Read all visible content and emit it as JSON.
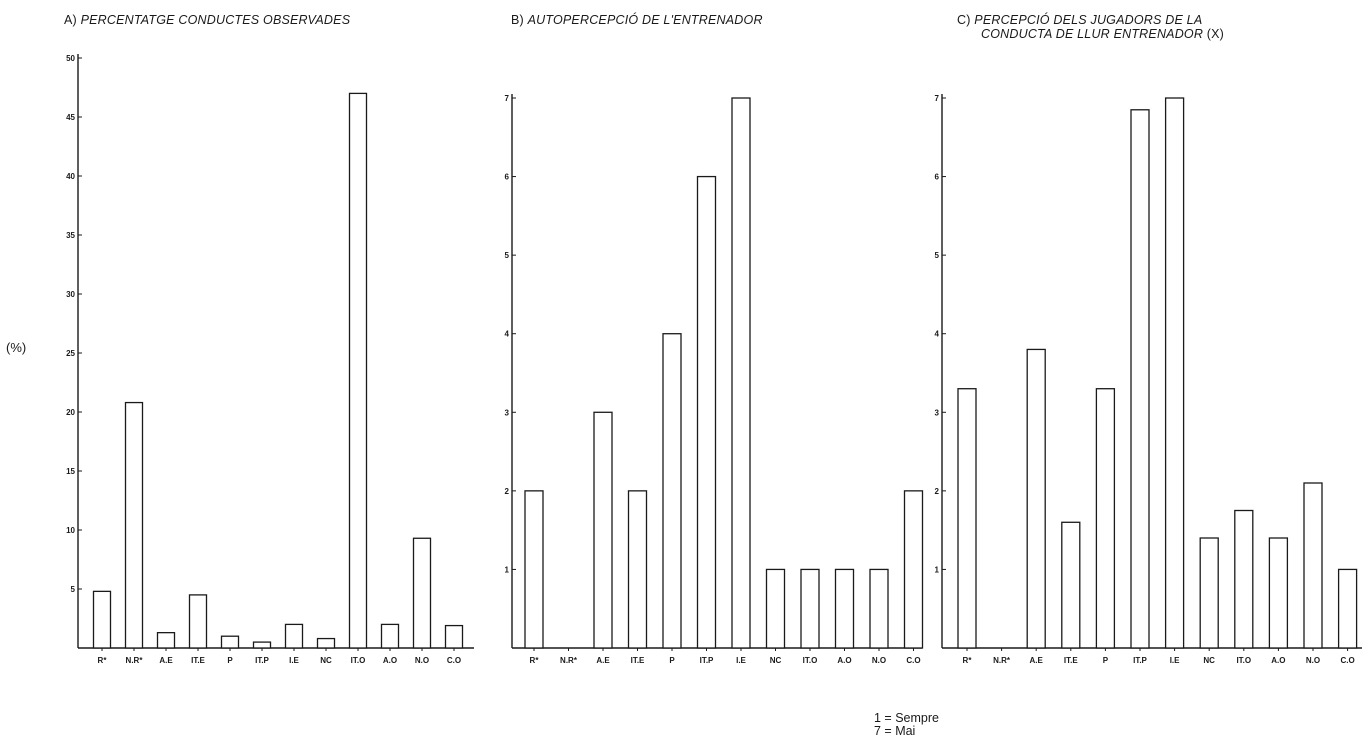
{
  "titles": {
    "a_letter": "A)",
    "a_text": "PERCENTATGE CONDUCTES OBSERVADES",
    "b_letter": "B)",
    "b_text": "AUTOPERCEPCIÓ DE L'ENTRENADOR",
    "c_letter": "C)",
    "c_line1": "PERCEPCIÓ DELS JUGADORS DE LA",
    "c_line2": "CONDUCTA DE LLUR ENTRENADOR",
    "c_suffix": "(X)"
  },
  "unit_label": "(%)",
  "legend": {
    "line1": "1 = Sempre",
    "line2": "7 = Mai"
  },
  "chart_data": [
    {
      "type": "bar",
      "title": "PERCENTATGE CONDUCTES OBSERVADES",
      "ylabel": "(%)",
      "ylim": [
        0,
        50
      ],
      "yticks": [
        5,
        10,
        15,
        20,
        25,
        30,
        35,
        40,
        45,
        50
      ],
      "categories": [
        "R*",
        "N.R*",
        "A.E",
        "IT.E",
        "P",
        "IT.P",
        "I.E",
        "NC",
        "IT.O",
        "A.O",
        "N.O",
        "C.O"
      ],
      "values": [
        4.8,
        20.8,
        1.3,
        4.5,
        1.0,
        0.5,
        2.0,
        0.8,
        47.0,
        2.0,
        9.3,
        1.9
      ]
    },
    {
      "type": "bar",
      "title": "AUTOPERCEPCIÓ DE L'ENTRENADOR",
      "ylim": [
        0,
        7
      ],
      "yticks": [
        1,
        2,
        3,
        4,
        5,
        6,
        7
      ],
      "categories": [
        "R*",
        "N.R*",
        "A.E",
        "IT.E",
        "P",
        "IT.P",
        "I.E",
        "NC",
        "IT.O",
        "A.O",
        "N.O",
        "C.O"
      ],
      "values": [
        2,
        0,
        3,
        2,
        4,
        6,
        7,
        1,
        1,
        1,
        1,
        2
      ]
    },
    {
      "type": "bar",
      "title": "PERCEPCIÓ DELS JUGADORS DE LA CONDUCTA DE LLUR ENTRENADOR (X)",
      "ylim": [
        0,
        7
      ],
      "yticks": [
        1,
        2,
        3,
        4,
        5,
        6,
        7
      ],
      "categories": [
        "R*",
        "N.R*",
        "A.E",
        "IT.E",
        "P",
        "IT.P",
        "I.E",
        "NC",
        "IT.O",
        "A.O",
        "N.O",
        "C.O"
      ],
      "values": [
        3.3,
        0,
        3.8,
        1.6,
        3.3,
        6.85,
        7.0,
        1.4,
        1.75,
        1.4,
        2.1,
        1.0
      ]
    }
  ]
}
